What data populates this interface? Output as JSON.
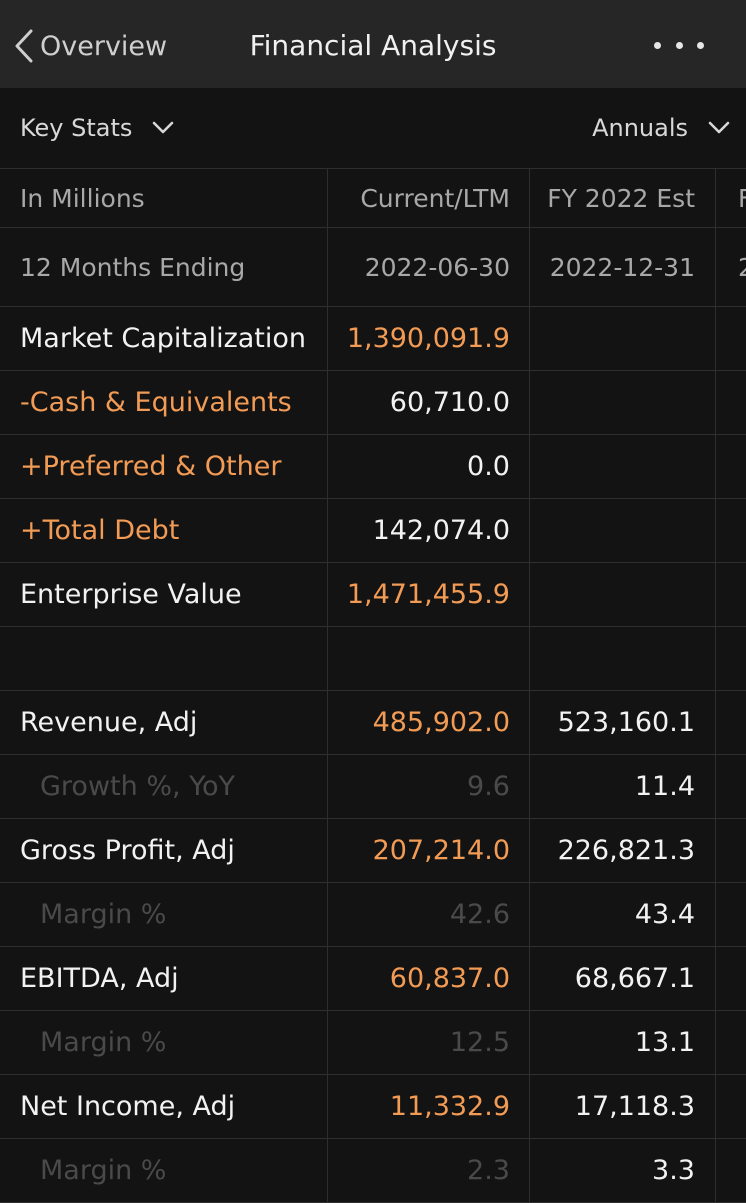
{
  "nav": {
    "back_label": "Overview",
    "title": "Financial Analysis"
  },
  "selectors": {
    "left": "Key Stats",
    "right": "Annuals"
  },
  "table": {
    "header": [
      "In Millions",
      "Current/LTM",
      "FY 2022 Est",
      "F"
    ],
    "dates": [
      "12 Months Ending",
      "2022-06-30",
      "2022-12-31",
      "2"
    ],
    "rows": [
      {
        "label": "Market Capitalization",
        "current": "1,390,091.9",
        "fy": "",
        "style": "orange"
      },
      {
        "label": "-Cash & Equivalents",
        "current": "60,710.0",
        "fy": "",
        "style": "white",
        "labelStyle": "orange"
      },
      {
        "label": "+Preferred & Other",
        "current": "0.0",
        "fy": "",
        "style": "white",
        "labelStyle": "orange"
      },
      {
        "label": "+Total Debt",
        "current": "142,074.0",
        "fy": "",
        "style": "white",
        "labelStyle": "orange"
      },
      {
        "label": "Enterprise Value",
        "current": "1,471,455.9",
        "fy": "",
        "style": "orange"
      },
      {
        "label": "",
        "current": "",
        "fy": "",
        "style": "blank"
      },
      {
        "label": "Revenue, Adj",
        "current": "485,902.0",
        "fy": "523,160.1",
        "style": "orange"
      },
      {
        "label": "Growth %, YoY",
        "current": "9.6",
        "fy": "11.4",
        "style": "sub"
      },
      {
        "label": "Gross Profit, Adj",
        "current": "207,214.0",
        "fy": "226,821.3",
        "style": "orange"
      },
      {
        "label": "Margin %",
        "current": "42.6",
        "fy": "43.4",
        "style": "sub"
      },
      {
        "label": "EBITDA, Adj",
        "current": "60,837.0",
        "fy": "68,667.1",
        "style": "orange"
      },
      {
        "label": "Margin %",
        "current": "12.5",
        "fy": "13.1",
        "style": "sub"
      },
      {
        "label": "Net Income, Adj",
        "current": "11,332.9",
        "fy": "17,118.3",
        "style": "orange"
      },
      {
        "label": "Margin %",
        "current": "2.3",
        "fy": "3.3",
        "style": "sub"
      }
    ]
  }
}
